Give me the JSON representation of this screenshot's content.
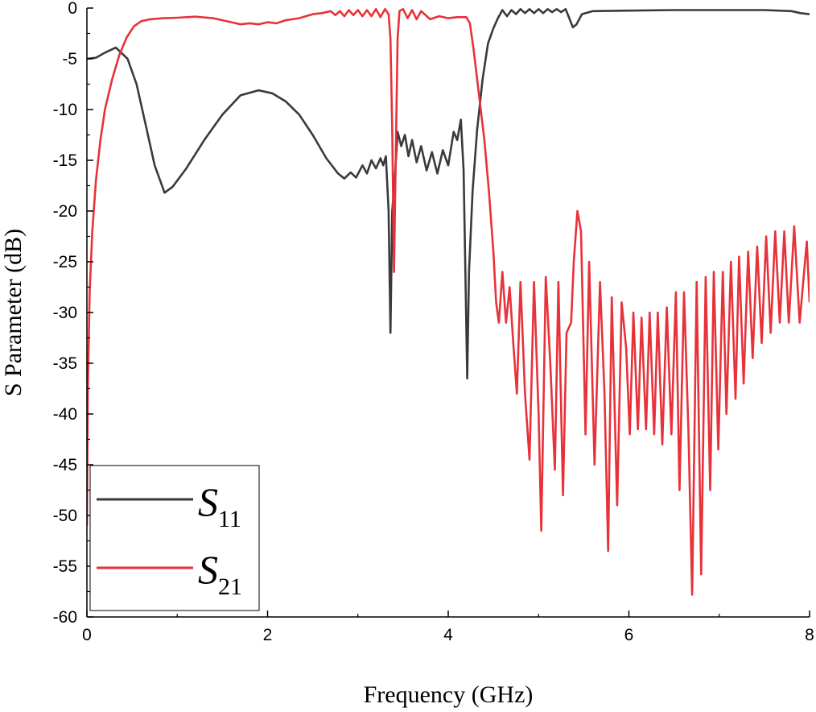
{
  "chart_data": {
    "type": "line",
    "title": "",
    "xlabel": "Frequency (GHz)",
    "ylabel": "S Parameter (dB)",
    "xlim": [
      0,
      8
    ],
    "ylim": [
      -60,
      0
    ],
    "x_ticks": [
      0,
      2,
      4,
      6,
      8
    ],
    "x_tick_labels": [
      "0",
      "2",
      "4",
      "6",
      "8"
    ],
    "y_ticks": [
      0,
      -5,
      -10,
      -15,
      -20,
      -25,
      -30,
      -35,
      -40,
      -45,
      -50,
      -55,
      -60
    ],
    "y_tick_labels": [
      "0",
      "-5",
      "-10",
      "-15",
      "-20",
      "-25",
      "-30",
      "-35",
      "-40",
      "-45",
      "-50",
      "-55",
      "-60"
    ],
    "grid": false,
    "legend_position": "bottom-left",
    "series": [
      {
        "name": "S11",
        "name_main": "S",
        "name_sub": "11",
        "color": "#3a3a3a",
        "points": [
          [
            0.0,
            -5.0
          ],
          [
            0.1,
            -4.9
          ],
          [
            0.2,
            -4.4
          ],
          [
            0.32,
            -3.9
          ],
          [
            0.45,
            -5.0
          ],
          [
            0.55,
            -7.5
          ],
          [
            0.65,
            -11.5
          ],
          [
            0.75,
            -15.5
          ],
          [
            0.86,
            -18.2
          ],
          [
            0.95,
            -17.6
          ],
          [
            1.1,
            -15.8
          ],
          [
            1.3,
            -13.0
          ],
          [
            1.5,
            -10.5
          ],
          [
            1.7,
            -8.6
          ],
          [
            1.9,
            -8.1
          ],
          [
            2.05,
            -8.4
          ],
          [
            2.2,
            -9.2
          ],
          [
            2.35,
            -10.5
          ],
          [
            2.5,
            -12.5
          ],
          [
            2.65,
            -14.8
          ],
          [
            2.78,
            -16.3
          ],
          [
            2.85,
            -16.8
          ],
          [
            2.92,
            -16.2
          ],
          [
            2.98,
            -16.7
          ],
          [
            3.05,
            -15.5
          ],
          [
            3.1,
            -16.3
          ],
          [
            3.15,
            -15.0
          ],
          [
            3.2,
            -15.8
          ],
          [
            3.25,
            -14.8
          ],
          [
            3.28,
            -15.5
          ],
          [
            3.31,
            -14.6
          ],
          [
            3.34,
            -20.0
          ],
          [
            3.36,
            -32.0
          ],
          [
            3.38,
            -20.0
          ],
          [
            3.41,
            -16.5
          ],
          [
            3.44,
            -12.2
          ],
          [
            3.48,
            -13.6
          ],
          [
            3.52,
            -12.5
          ],
          [
            3.56,
            -14.6
          ],
          [
            3.6,
            -13.0
          ],
          [
            3.65,
            -15.2
          ],
          [
            3.7,
            -13.6
          ],
          [
            3.76,
            -16.0
          ],
          [
            3.82,
            -14.2
          ],
          [
            3.88,
            -16.3
          ],
          [
            3.94,
            -14.0
          ],
          [
            4.0,
            -15.5
          ],
          [
            4.06,
            -12.2
          ],
          [
            4.1,
            -13.0
          ],
          [
            4.14,
            -11.0
          ],
          [
            4.17,
            -16.0
          ],
          [
            4.19,
            -26.0
          ],
          [
            4.21,
            -36.5
          ],
          [
            4.23,
            -26.0
          ],
          [
            4.27,
            -18.0
          ],
          [
            4.32,
            -12.0
          ],
          [
            4.38,
            -7.0
          ],
          [
            4.44,
            -3.5
          ],
          [
            4.5,
            -2.0
          ],
          [
            4.55,
            -1.0
          ],
          [
            4.6,
            -0.2
          ],
          [
            4.65,
            -0.8
          ],
          [
            4.7,
            -0.2
          ],
          [
            4.75,
            -0.6
          ],
          [
            4.8,
            -0.1
          ],
          [
            4.85,
            -0.5
          ],
          [
            4.9,
            -0.1
          ],
          [
            4.95,
            -0.5
          ],
          [
            5.0,
            -0.1
          ],
          [
            5.05,
            -0.5
          ],
          [
            5.1,
            -0.1
          ],
          [
            5.15,
            -0.4
          ],
          [
            5.2,
            -0.1
          ],
          [
            5.25,
            -0.4
          ],
          [
            5.3,
            -0.1
          ],
          [
            5.34,
            -1.0
          ],
          [
            5.38,
            -1.9
          ],
          [
            5.42,
            -1.6
          ],
          [
            5.48,
            -0.6
          ],
          [
            5.6,
            -0.3
          ],
          [
            6.0,
            -0.25
          ],
          [
            6.5,
            -0.2
          ],
          [
            7.0,
            -0.2
          ],
          [
            7.5,
            -0.2
          ],
          [
            7.8,
            -0.3
          ],
          [
            7.9,
            -0.5
          ],
          [
            8.0,
            -0.6
          ]
        ]
      },
      {
        "name": "S21",
        "name_main": "S",
        "name_sub": "21",
        "color": "#e8323a",
        "points": [
          [
            0.0,
            -51.0
          ],
          [
            0.01,
            -38.0
          ],
          [
            0.03,
            -28.0
          ],
          [
            0.06,
            -22.0
          ],
          [
            0.1,
            -17.0
          ],
          [
            0.15,
            -13.0
          ],
          [
            0.2,
            -10.0
          ],
          [
            0.28,
            -7.0
          ],
          [
            0.36,
            -4.6
          ],
          [
            0.44,
            -2.9
          ],
          [
            0.52,
            -1.8
          ],
          [
            0.6,
            -1.3
          ],
          [
            0.7,
            -1.1
          ],
          [
            0.85,
            -1.0
          ],
          [
            1.0,
            -0.95
          ],
          [
            1.2,
            -0.85
          ],
          [
            1.4,
            -1.0
          ],
          [
            1.6,
            -1.4
          ],
          [
            1.7,
            -1.6
          ],
          [
            1.8,
            -1.5
          ],
          [
            1.9,
            -1.6
          ],
          [
            2.0,
            -1.4
          ],
          [
            2.1,
            -1.5
          ],
          [
            2.2,
            -1.2
          ],
          [
            2.35,
            -1.0
          ],
          [
            2.5,
            -0.6
          ],
          [
            2.6,
            -0.5
          ],
          [
            2.7,
            -0.3
          ],
          [
            2.75,
            -0.7
          ],
          [
            2.8,
            -0.3
          ],
          [
            2.85,
            -0.8
          ],
          [
            2.9,
            -0.2
          ],
          [
            2.95,
            -0.7
          ],
          [
            3.0,
            -0.2
          ],
          [
            3.05,
            -0.8
          ],
          [
            3.1,
            -0.2
          ],
          [
            3.15,
            -0.8
          ],
          [
            3.2,
            -0.1
          ],
          [
            3.25,
            -0.9
          ],
          [
            3.3,
            -0.1
          ],
          [
            3.34,
            -0.6
          ],
          [
            3.36,
            -3.0
          ],
          [
            3.38,
            -12.0
          ],
          [
            3.4,
            -26.0
          ],
          [
            3.42,
            -14.0
          ],
          [
            3.44,
            -3.0
          ],
          [
            3.46,
            -0.3
          ],
          [
            3.5,
            -0.1
          ],
          [
            3.55,
            -1.0
          ],
          [
            3.6,
            -0.2
          ],
          [
            3.65,
            -1.1
          ],
          [
            3.7,
            -0.3
          ],
          [
            3.8,
            -1.1
          ],
          [
            3.9,
            -0.8
          ],
          [
            4.0,
            -1.0
          ],
          [
            4.1,
            -0.9
          ],
          [
            4.2,
            -0.9
          ],
          [
            4.24,
            -1.5
          ],
          [
            4.28,
            -4.0
          ],
          [
            4.32,
            -7.0
          ],
          [
            4.36,
            -10.0
          ],
          [
            4.4,
            -13.0
          ],
          [
            4.45,
            -18.0
          ],
          [
            4.5,
            -24.0
          ],
          [
            4.53,
            -29.0
          ],
          [
            4.56,
            -31.0
          ],
          [
            4.6,
            -26.0
          ],
          [
            4.64,
            -31.0
          ],
          [
            4.68,
            -27.5
          ],
          [
            4.72,
            -33.0
          ],
          [
            4.76,
            -38.0
          ],
          [
            4.8,
            -27.0
          ],
          [
            4.85,
            -38.0
          ],
          [
            4.9,
            -44.5
          ],
          [
            4.95,
            -27.0
          ],
          [
            5.0,
            -40.0
          ],
          [
            5.03,
            -51.5
          ],
          [
            5.08,
            -26.5
          ],
          [
            5.13,
            -35.0
          ],
          [
            5.18,
            -45.5
          ],
          [
            5.22,
            -27.0
          ],
          [
            5.27,
            -48.0
          ],
          [
            5.31,
            -32.0
          ],
          [
            5.36,
            -31.0
          ],
          [
            5.39,
            -25.0
          ],
          [
            5.43,
            -20.0
          ],
          [
            5.47,
            -22.0
          ],
          [
            5.52,
            -42.0
          ],
          [
            5.56,
            -25.0
          ],
          [
            5.62,
            -45.0
          ],
          [
            5.68,
            -27.0
          ],
          [
            5.73,
            -38.0
          ],
          [
            5.77,
            -53.5
          ],
          [
            5.81,
            -28.5
          ],
          [
            5.87,
            -49.0
          ],
          [
            5.92,
            -29.0
          ],
          [
            5.97,
            -33.5
          ],
          [
            6.01,
            -42.0
          ],
          [
            6.05,
            -30.0
          ],
          [
            6.1,
            -41.5
          ],
          [
            6.14,
            -30.5
          ],
          [
            6.19,
            -41.5
          ],
          [
            6.23,
            -30.0
          ],
          [
            6.28,
            -42.0
          ],
          [
            6.32,
            -30.0
          ],
          [
            6.37,
            -43.0
          ],
          [
            6.42,
            -29.5
          ],
          [
            6.47,
            -42.0
          ],
          [
            6.52,
            -28.0
          ],
          [
            6.56,
            -47.5
          ],
          [
            6.61,
            -28.0
          ],
          [
            6.66,
            -42.0
          ],
          [
            6.7,
            -57.8
          ],
          [
            6.75,
            -27.0
          ],
          [
            6.8,
            -55.8
          ],
          [
            6.85,
            -26.5
          ],
          [
            6.9,
            -47.5
          ],
          [
            6.94,
            -26.0
          ],
          [
            6.99,
            -43.5
          ],
          [
            7.04,
            -26.0
          ],
          [
            7.08,
            -40.0
          ],
          [
            7.13,
            -25.0
          ],
          [
            7.18,
            -38.5
          ],
          [
            7.22,
            -24.5
          ],
          [
            7.27,
            -37.0
          ],
          [
            7.32,
            -24.0
          ],
          [
            7.37,
            -34.5
          ],
          [
            7.42,
            -23.5
          ],
          [
            7.47,
            -33.0
          ],
          [
            7.52,
            -22.5
          ],
          [
            7.57,
            -32.0
          ],
          [
            7.62,
            -22.0
          ],
          [
            7.67,
            -31.0
          ],
          [
            7.72,
            -22.0
          ],
          [
            7.77,
            -31.0
          ],
          [
            7.83,
            -21.5
          ],
          [
            7.89,
            -31.0
          ],
          [
            7.93,
            -27.0
          ],
          [
            7.97,
            -23.0
          ],
          [
            8.0,
            -29.0
          ]
        ]
      }
    ]
  }
}
